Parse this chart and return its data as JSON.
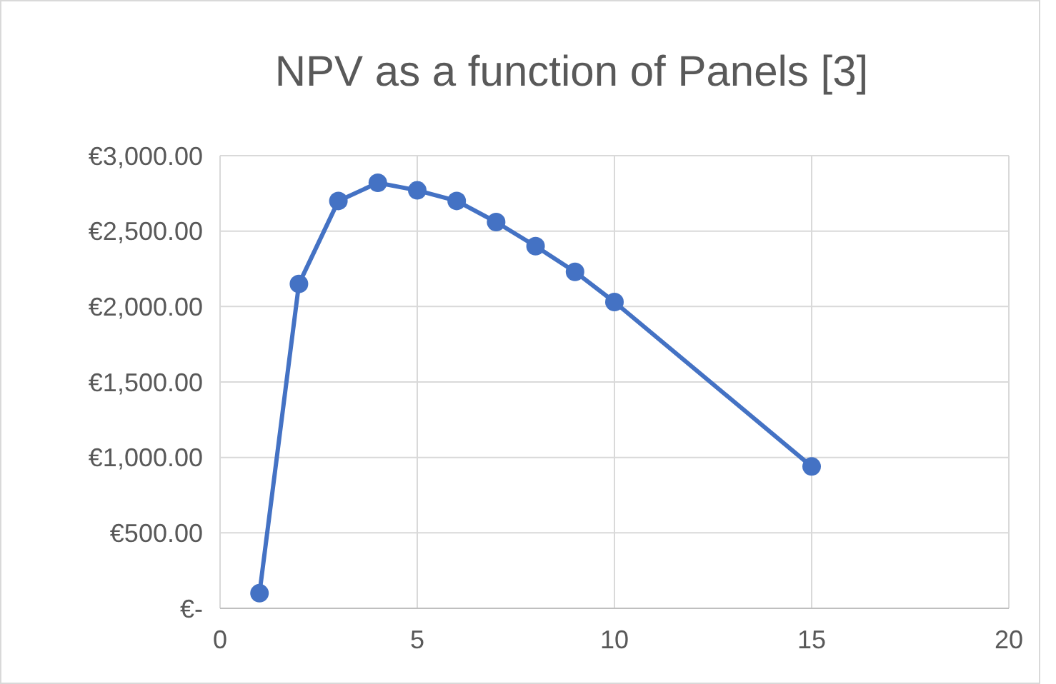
{
  "chart_data": {
    "type": "line",
    "title": "NPV as a function of Panels [3]",
    "x": [
      1,
      2,
      3,
      4,
      5,
      6,
      7,
      8,
      9,
      10,
      15
    ],
    "series": [
      {
        "color": "#4472c4",
        "values": [
          100,
          2150,
          2700,
          2820,
          2770,
          2700,
          2560,
          2400,
          2230,
          2030,
          940
        ]
      }
    ],
    "xlim": [
      0,
      20
    ],
    "xticks": [
      0,
      5,
      10,
      15,
      20
    ],
    "ylim": [
      0,
      3000
    ],
    "yticks": [
      {
        "value": 0,
        "label": "€-"
      },
      {
        "value": 500,
        "label": "€500.00"
      },
      {
        "value": 1000,
        "label": "€1,000.00"
      },
      {
        "value": 1500,
        "label": "€1,500.00"
      },
      {
        "value": 2000,
        "label": "€2,000.00"
      },
      {
        "value": 2500,
        "label": "€2,500.00"
      },
      {
        "value": 3000,
        "label": "€3,000.00"
      }
    ],
    "grid": true,
    "marker": "circle",
    "line_style": "solid"
  }
}
